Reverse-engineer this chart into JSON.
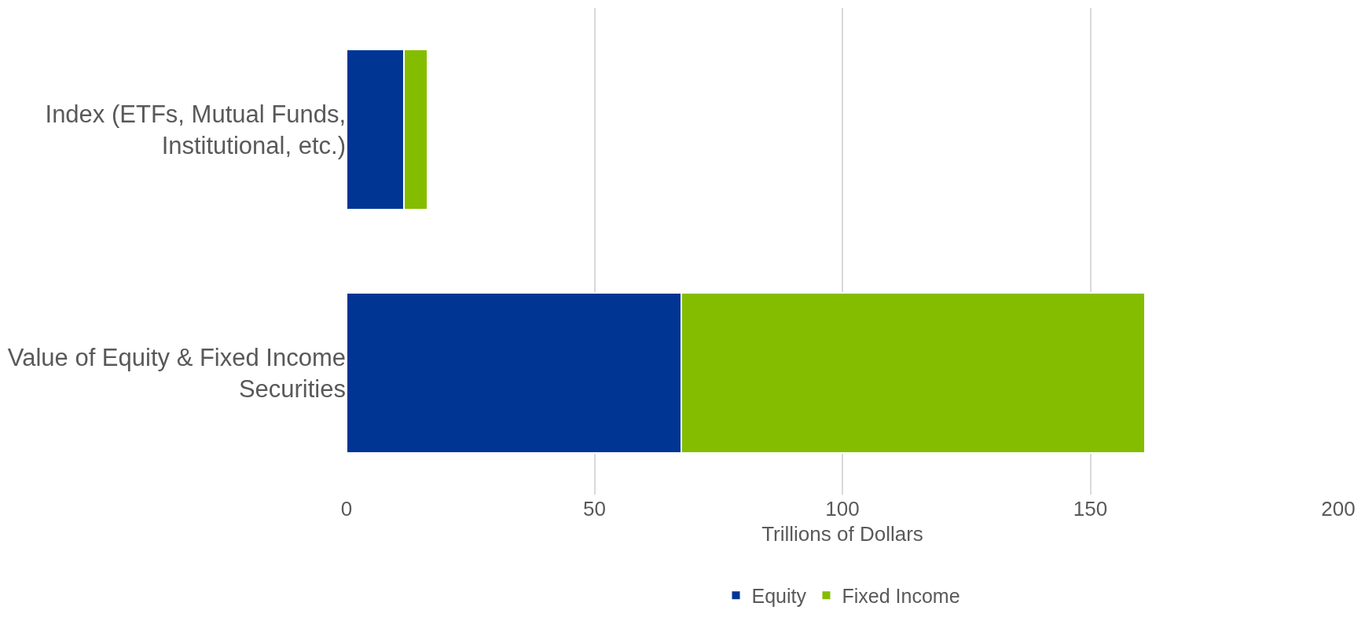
{
  "chart_data": {
    "type": "bar",
    "orientation": "horizontal",
    "stacked": true,
    "xlabel": "Trillions of Dollars",
    "categories": [
      "Index (ETFs, Mutual Funds, Institutional, etc.)",
      "Value of Equity & Fixed Income Securities"
    ],
    "series": [
      {
        "name": "Equity",
        "color": "#003594",
        "values": [
          11.6,
          67.5
        ]
      },
      {
        "name": "Fixed Income",
        "color": "#84bd00",
        "values": [
          4.8,
          93.5
        ]
      }
    ],
    "xlim": [
      0,
      200
    ],
    "xticks": [
      0,
      50,
      100,
      150,
      200
    ],
    "grid": "x",
    "legend": "bottom"
  }
}
